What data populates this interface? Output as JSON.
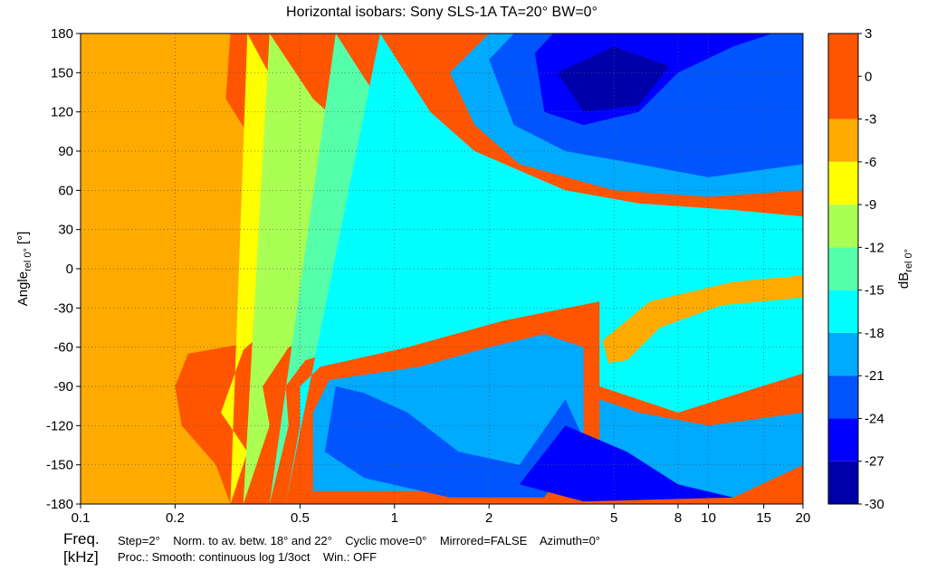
{
  "chart_data": {
    "type": "heatmap",
    "title": "Horizontal isobars: Sony   SLS-1A  TA=20° BW=0°",
    "ylabel": {
      "main": "Angle",
      "sub": "rel 0°",
      "unit": "[°]"
    },
    "colorbar_label": {
      "main": "dB",
      "sub": "rel 0°"
    },
    "x_axis": {
      "scale": "log",
      "range": [
        0.1,
        20
      ],
      "unit": "kHz",
      "ticks": [
        0.1,
        0.2,
        0.5,
        1,
        2,
        5,
        8,
        10,
        15,
        20
      ],
      "tick_labels": [
        "0.1",
        "0.2",
        "0.5",
        "1",
        "2",
        "5",
        "8",
        "10",
        "15",
        "20"
      ]
    },
    "y_axis": {
      "range": [
        -180,
        180
      ],
      "ticks": [
        180,
        150,
        120,
        90,
        60,
        30,
        0,
        -30,
        -60,
        -90,
        -120,
        -150,
        -180
      ],
      "tick_labels": [
        "180",
        "150",
        "120",
        "90",
        "60",
        "30",
        "0",
        "-30",
        "-60",
        "-90",
        "-120",
        "-150",
        "-180"
      ]
    },
    "colorbar": {
      "range": [
        -30,
        3
      ],
      "tick_labels": [
        "3",
        "0",
        "-3",
        "-6",
        "-9",
        "-12",
        "-15",
        "-18",
        "-21",
        "-24",
        "-27",
        "-30"
      ],
      "levels": [
        {
          "from": 3,
          "to": -3,
          "color": "#ff5500"
        },
        {
          "from": -3,
          "to": -6,
          "color": "#ffaa00"
        },
        {
          "from": -6,
          "to": -9,
          "color": "#ffff00"
        },
        {
          "from": -9,
          "to": -12,
          "color": "#aaff55"
        },
        {
          "from": -12,
          "to": -15,
          "color": "#55ffaa"
        },
        {
          "from": -15,
          "to": -18,
          "color": "#00ffff"
        },
        {
          "from": -18,
          "to": -21,
          "color": "#00aaff"
        },
        {
          "from": -21,
          "to": -24,
          "color": "#0055ff"
        },
        {
          "from": -24,
          "to": -27,
          "color": "#0000ff"
        },
        {
          "from": -27,
          "to": -30,
          "color": "#0000aa"
        }
      ]
    },
    "contour_regions": [
      {
        "level": -3,
        "boundary": [
          [
            0.1,
            -180
          ],
          [
            0.3,
            -180
          ],
          [
            0.27,
            -150
          ],
          [
            0.21,
            -120
          ],
          [
            0.2,
            -90
          ],
          [
            0.22,
            -65
          ],
          [
            0.32,
            -58
          ],
          [
            0.4,
            -38
          ],
          [
            0.55,
            -18
          ],
          [
            1,
            -8
          ],
          [
            2,
            -4
          ],
          [
            5,
            -2
          ],
          [
            10,
            0
          ],
          [
            20,
            2
          ],
          [
            20,
            20
          ],
          [
            14,
            24
          ],
          [
            8,
            25
          ],
          [
            4,
            30
          ],
          [
            2,
            32
          ],
          [
            1,
            42
          ],
          [
            0.6,
            55
          ],
          [
            0.38,
            85
          ],
          [
            0.29,
            130
          ],
          [
            0.3,
            180
          ],
          [
            0.1,
            180
          ]
        ]
      },
      {
        "level": -3,
        "boundary": [
          [
            4.6,
            -55
          ],
          [
            6.5,
            -25
          ],
          [
            12,
            -10
          ],
          [
            20,
            -5
          ],
          [
            20,
            -22
          ],
          [
            11,
            -28
          ],
          [
            7,
            -45
          ],
          [
            5.5,
            -70
          ],
          [
            4.8,
            -72
          ]
        ]
      },
      {
        "level": -6,
        "boundary": [
          [
            0.3,
            -180
          ],
          [
            0.34,
            -140
          ],
          [
            0.28,
            -110
          ],
          [
            0.33,
            -62
          ],
          [
            0.42,
            -40
          ],
          [
            0.7,
            -25
          ],
          [
            1.5,
            -14
          ],
          [
            3,
            -8
          ],
          [
            8,
            -2
          ],
          [
            20,
            0
          ],
          [
            20,
            26
          ],
          [
            10,
            27
          ],
          [
            5,
            32
          ],
          [
            2.5,
            38
          ],
          [
            1.2,
            52
          ],
          [
            0.65,
            80
          ],
          [
            0.44,
            130
          ],
          [
            0.34,
            180
          ]
        ]
      },
      {
        "level": -9,
        "boundary": [
          [
            0.33,
            -180
          ],
          [
            0.4,
            -120
          ],
          [
            0.38,
            -90
          ],
          [
            0.46,
            -60
          ],
          [
            0.8,
            -38
          ],
          [
            1.8,
            -22
          ],
          [
            4,
            -12
          ],
          [
            10,
            -6
          ],
          [
            20,
            -3
          ],
          [
            20,
            30
          ],
          [
            10,
            31
          ],
          [
            5,
            36
          ],
          [
            3,
            42
          ],
          [
            1.5,
            60
          ],
          [
            0.8,
            95
          ],
          [
            0.55,
            130
          ],
          [
            0.4,
            180
          ]
        ]
      },
      {
        "level": -12,
        "boundary": [
          [
            0.4,
            -180
          ],
          [
            0.46,
            -120
          ],
          [
            0.45,
            -90
          ],
          [
            0.52,
            -70
          ],
          [
            0.95,
            -50
          ],
          [
            2,
            -32
          ],
          [
            4.5,
            -18
          ],
          [
            12,
            -8
          ],
          [
            20,
            -6
          ],
          [
            20,
            34
          ],
          [
            10,
            36
          ],
          [
            5,
            40
          ],
          [
            3,
            50
          ],
          [
            1.6,
            75
          ],
          [
            1,
            110
          ],
          [
            0.65,
            180
          ]
        ]
      },
      {
        "level": -15,
        "boundary": [
          [
            0.45,
            -180
          ],
          [
            0.5,
            -120
          ],
          [
            0.5,
            -90
          ],
          [
            0.58,
            -75
          ],
          [
            1.1,
            -60
          ],
          [
            2.2,
            -40
          ],
          [
            4.5,
            -25
          ],
          [
            4.5,
            -90
          ],
          [
            8,
            -110
          ],
          [
            20,
            -80
          ],
          [
            20,
            40
          ],
          [
            12,
            45
          ],
          [
            6,
            50
          ],
          [
            3.5,
            60
          ],
          [
            1.8,
            90
          ],
          [
            1.3,
            120
          ],
          [
            0.9,
            180
          ]
        ]
      },
      {
        "level": -3,
        "boundary": [
          [
            4.6,
            -55
          ],
          [
            6.5,
            -25
          ],
          [
            12,
            -10
          ],
          [
            20,
            -5
          ],
          [
            20,
            -22
          ],
          [
            11,
            -28
          ],
          [
            7,
            -45
          ],
          [
            5.5,
            -70
          ],
          [
            4.8,
            -72
          ]
        ]
      },
      {
        "level": -18,
        "boundary": [
          [
            0.55,
            -170
          ],
          [
            0.55,
            -110
          ],
          [
            0.62,
            -85
          ],
          [
            1.2,
            -75
          ],
          [
            2,
            -60
          ],
          [
            3,
            -50
          ],
          [
            4,
            -60
          ],
          [
            4,
            -140
          ],
          [
            6,
            -170
          ],
          [
            12,
            -175
          ],
          [
            20,
            -150
          ],
          [
            20,
            -110
          ],
          [
            10,
            -120
          ],
          [
            6,
            -110
          ],
          [
            4.5,
            -100
          ],
          [
            4.5,
            -170
          ]
        ]
      },
      {
        "level": -18,
        "boundary": [
          [
            1.5,
            150
          ],
          [
            1.8,
            110
          ],
          [
            2.5,
            80
          ],
          [
            5,
            60
          ],
          [
            10,
            55
          ],
          [
            20,
            60
          ],
          [
            20,
            180
          ],
          [
            2,
            180
          ]
        ]
      },
      {
        "level": -21,
        "boundary": [
          [
            0.6,
            -140
          ],
          [
            0.65,
            -90
          ],
          [
            0.8,
            -95
          ],
          [
            1.1,
            -110
          ],
          [
            1.6,
            -140
          ],
          [
            2.5,
            -150
          ],
          [
            3.5,
            -100
          ],
          [
            4,
            -130
          ],
          [
            3,
            -175
          ],
          [
            1.5,
            -175
          ],
          [
            0.8,
            -160
          ]
        ]
      },
      {
        "level": -21,
        "boundary": [
          [
            2,
            160
          ],
          [
            2.4,
            110
          ],
          [
            3.5,
            90
          ],
          [
            6,
            80
          ],
          [
            10,
            70
          ],
          [
            20,
            80
          ],
          [
            20,
            180
          ],
          [
            2.4,
            180
          ]
        ]
      },
      {
        "level": -24,
        "boundary": [
          [
            2.8,
            165
          ],
          [
            3,
            120
          ],
          [
            4,
            110
          ],
          [
            6,
            120
          ],
          [
            8,
            150
          ],
          [
            12,
            170
          ],
          [
            16,
            180
          ],
          [
            3.2,
            180
          ]
        ]
      },
      {
        "level": -24,
        "boundary": [
          [
            2.5,
            -165
          ],
          [
            3.5,
            -120
          ],
          [
            5.5,
            -140
          ],
          [
            8,
            -165
          ],
          [
            12,
            -175
          ],
          [
            4,
            -178
          ]
        ]
      },
      {
        "level": -27,
        "boundary": [
          [
            3.3,
            150
          ],
          [
            4,
            120
          ],
          [
            6,
            125
          ],
          [
            7.5,
            155
          ],
          [
            5,
            170
          ]
        ]
      }
    ]
  },
  "footer": {
    "freq_label": "Freq.",
    "khz_label": "[kHz]",
    "line1": "Step=2°    Norm. to av. betw. 18° and 22°    Cyclic move=0°    Mirrored=FALSE    Azimuth=0°",
    "line2": "Proc.: Smooth: continuous log 1/3oct    Win.: OFF"
  }
}
